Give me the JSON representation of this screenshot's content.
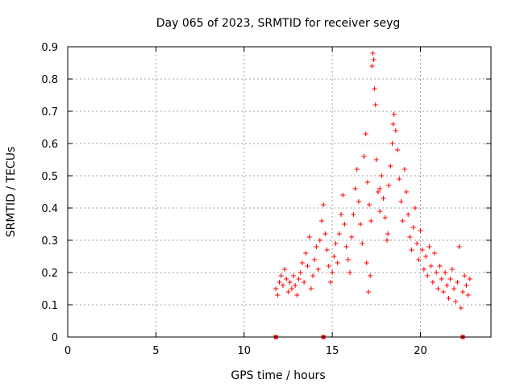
{
  "chart_data": {
    "type": "scatter",
    "title": "Day 065 of 2023, SRMTID for receiver seyg",
    "xlabel": "GPS time / hours",
    "ylabel": "SRMTID / TECUs",
    "xlim": [
      0,
      24
    ],
    "ylim": [
      0,
      0.9
    ],
    "xticks": [
      0,
      5,
      10,
      15,
      20
    ],
    "yticks": [
      0,
      0.1,
      0.2,
      0.3,
      0.4,
      0.5,
      0.6,
      0.7,
      0.8,
      0.9
    ],
    "grid": true,
    "marker": "+",
    "color": "#ff0000",
    "series": [
      {
        "name": "SRMTID",
        "points": [
          [
            11.8,
            0.15
          ],
          [
            11.9,
            0.13
          ],
          [
            12.0,
            0.17
          ],
          [
            12.1,
            0.19
          ],
          [
            12.2,
            0.16
          ],
          [
            12.3,
            0.21
          ],
          [
            12.4,
            0.18
          ],
          [
            12.5,
            0.14
          ],
          [
            12.6,
            0.17
          ],
          [
            12.7,
            0.15
          ],
          [
            12.8,
            0.19
          ],
          [
            12.9,
            0.16
          ],
          [
            13.0,
            0.13
          ],
          [
            13.1,
            0.18
          ],
          [
            13.2,
            0.2
          ],
          [
            13.3,
            0.23
          ],
          [
            13.4,
            0.17
          ],
          [
            13.5,
            0.26
          ],
          [
            13.6,
            0.22
          ],
          [
            13.7,
            0.31
          ],
          [
            13.8,
            0.15
          ],
          [
            13.9,
            0.19
          ],
          [
            14.0,
            0.24
          ],
          [
            14.1,
            0.28
          ],
          [
            14.2,
            0.21
          ],
          [
            14.3,
            0.3
          ],
          [
            14.4,
            0.36
          ],
          [
            14.5,
            0.41
          ],
          [
            14.6,
            0.32
          ],
          [
            14.7,
            0.27
          ],
          [
            14.8,
            0.22
          ],
          [
            14.9,
            0.17
          ],
          [
            15.0,
            0.2
          ],
          [
            15.1,
            0.25
          ],
          [
            15.2,
            0.29
          ],
          [
            15.3,
            0.23
          ],
          [
            15.4,
            0.32
          ],
          [
            15.5,
            0.38
          ],
          [
            15.6,
            0.44
          ],
          [
            15.7,
            0.35
          ],
          [
            15.8,
            0.28
          ],
          [
            15.9,
            0.24
          ],
          [
            16.0,
            0.2
          ],
          [
            16.1,
            0.31
          ],
          [
            16.2,
            0.38
          ],
          [
            16.3,
            0.46
          ],
          [
            16.4,
            0.52
          ],
          [
            16.5,
            0.42
          ],
          [
            16.6,
            0.35
          ],
          [
            16.7,
            0.29
          ],
          [
            16.8,
            0.56
          ],
          [
            16.9,
            0.63
          ],
          [
            17.0,
            0.48
          ],
          [
            17.1,
            0.41
          ],
          [
            17.2,
            0.36
          ],
          [
            17.3,
            0.88
          ],
          [
            17.35,
            0.86
          ],
          [
            17.4,
            0.77
          ],
          [
            17.45,
            0.72
          ],
          [
            17.5,
            0.55
          ],
          [
            17.6,
            0.45
          ],
          [
            17.7,
            0.39
          ],
          [
            17.8,
            0.5
          ],
          [
            17.9,
            0.43
          ],
          [
            18.0,
            0.37
          ],
          [
            18.1,
            0.3
          ],
          [
            18.2,
            0.47
          ],
          [
            18.3,
            0.53
          ],
          [
            18.4,
            0.6
          ],
          [
            18.5,
            0.69
          ],
          [
            18.6,
            0.64
          ],
          [
            18.7,
            0.58
          ],
          [
            18.8,
            0.49
          ],
          [
            18.9,
            0.42
          ],
          [
            19.0,
            0.36
          ],
          [
            19.1,
            0.52
          ],
          [
            19.2,
            0.45
          ],
          [
            19.3,
            0.38
          ],
          [
            19.4,
            0.31
          ],
          [
            19.5,
            0.27
          ],
          [
            19.6,
            0.34
          ],
          [
            19.7,
            0.4
          ],
          [
            19.8,
            0.29
          ],
          [
            19.9,
            0.24
          ],
          [
            20.0,
            0.33
          ],
          [
            20.1,
            0.27
          ],
          [
            20.2,
            0.21
          ],
          [
            20.3,
            0.25
          ],
          [
            20.4,
            0.19
          ],
          [
            20.5,
            0.28
          ],
          [
            20.6,
            0.22
          ],
          [
            20.7,
            0.17
          ],
          [
            20.8,
            0.26
          ],
          [
            20.9,
            0.2
          ],
          [
            21.0,
            0.15
          ],
          [
            21.1,
            0.22
          ],
          [
            21.2,
            0.18
          ],
          [
            21.3,
            0.14
          ],
          [
            21.4,
            0.2
          ],
          [
            21.5,
            0.16
          ],
          [
            21.6,
            0.12
          ],
          [
            21.7,
            0.18
          ],
          [
            21.8,
            0.21
          ],
          [
            21.9,
            0.15
          ],
          [
            22.0,
            0.11
          ],
          [
            22.1,
            0.17
          ],
          [
            22.2,
            0.28
          ],
          [
            22.3,
            0.09
          ],
          [
            22.4,
            0.14
          ],
          [
            22.5,
            0.19
          ],
          [
            22.6,
            0.16
          ],
          [
            22.7,
            0.13
          ],
          [
            22.8,
            0.18
          ],
          [
            17.05,
            0.14
          ],
          [
            17.15,
            0.19
          ],
          [
            16.95,
            0.23
          ],
          [
            18.15,
            0.32
          ],
          [
            17.25,
            0.84
          ],
          [
            17.7,
            0.46
          ],
          [
            18.45,
            0.66
          ]
        ]
      }
    ],
    "x_markers": [
      11.8,
      14.5,
      22.4
    ]
  }
}
